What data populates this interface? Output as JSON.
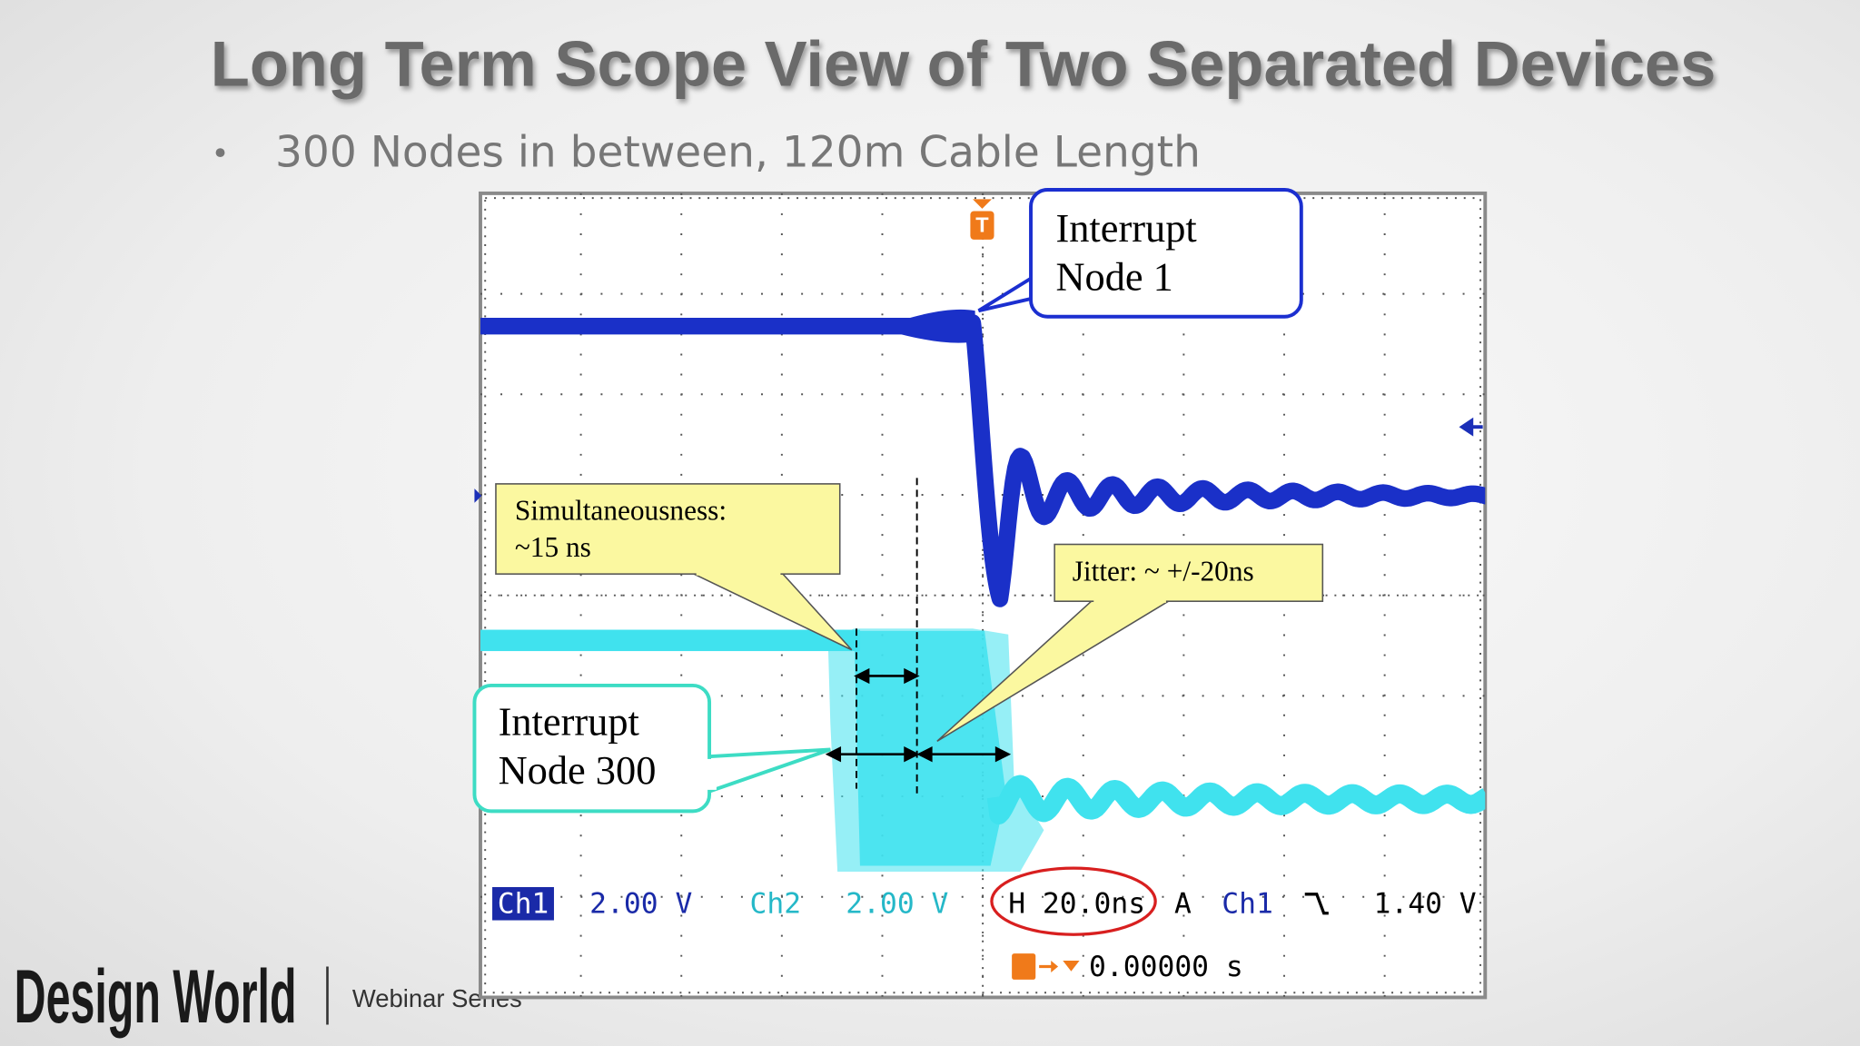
{
  "header": {
    "title": "Long Term Scope View of Two Separated Devices",
    "bullet": "300 Nodes in between, 120m Cable Length"
  },
  "scope": {
    "trigger_marker": "T",
    "callouts": [
      {
        "lines": [
          "Interrupt",
          "Node 1"
        ]
      },
      {
        "lines": [
          "Simultaneousness:",
          "~15 ns"
        ]
      },
      {
        "lines": [
          "Jitter: ~ +/-20ns"
        ]
      },
      {
        "lines": [
          "Interrupt",
          "Node 300"
        ]
      }
    ],
    "readout": {
      "ch1_label": "Ch1",
      "ch1_scale": "2.00 V",
      "ch2_label": "Ch2",
      "ch2_scale": "2.00 V",
      "horizontal": "H 20.0ns",
      "trigger_mode": "A",
      "trigger_source": "Ch1",
      "trigger_level": "1.40 V",
      "trigger_position": "0.00000 s"
    }
  },
  "footer": {
    "brand": "Design World",
    "tagline": "Webinar Series"
  }
}
